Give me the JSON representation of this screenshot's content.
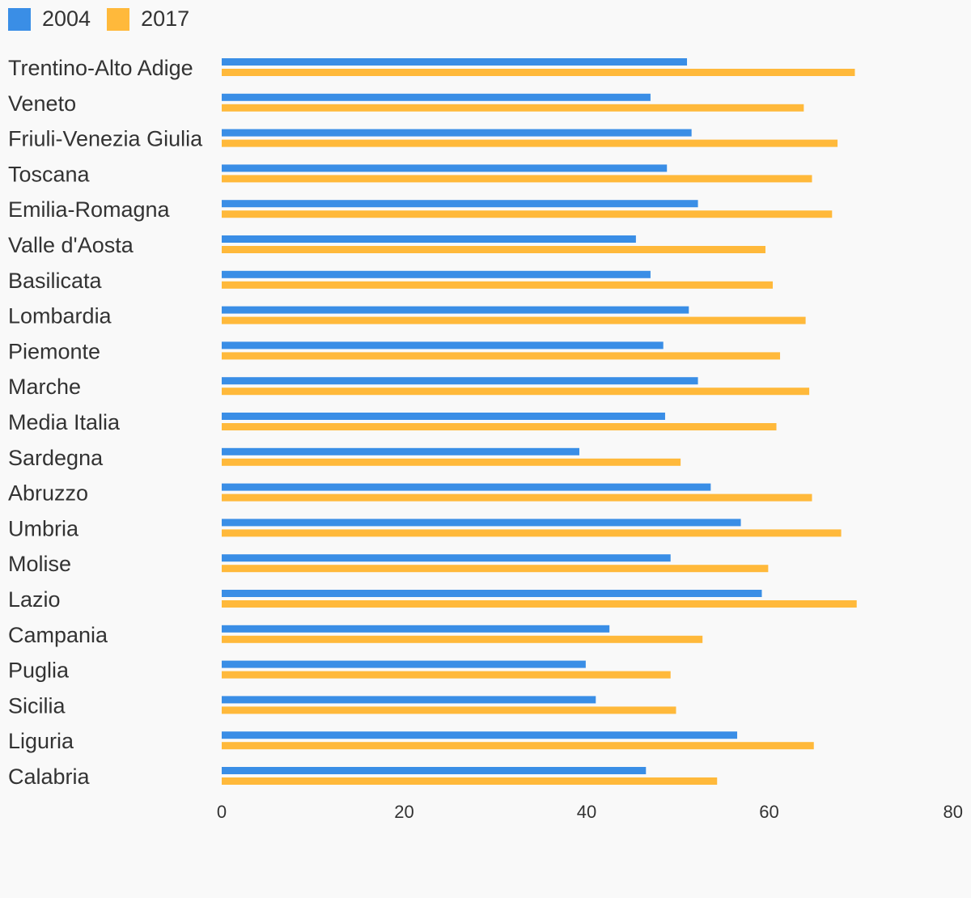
{
  "chart_data": {
    "type": "bar",
    "orientation": "horizontal",
    "categories": [
      "Trentino-Alto Adige",
      "Veneto",
      "Friuli-Venezia Giulia",
      "Toscana",
      "Emilia-Romagna",
      "Valle d'Aosta",
      "Basilicata",
      "Lombardia",
      "Piemonte",
      "Marche",
      "Media Italia",
      "Sardegna",
      "Abruzzo",
      "Umbria",
      "Molise",
      "Lazio",
      "Campania",
      "Puglia",
      "Sicilia",
      "Liguria",
      "Calabria"
    ],
    "series": [
      {
        "name": "2004",
        "color": "#3a8ee6",
        "values": [
          51.0,
          47.0,
          51.5,
          48.8,
          52.2,
          45.4,
          47.0,
          51.2,
          48.4,
          52.2,
          48.6,
          39.2,
          53.6,
          56.9,
          49.2,
          59.2,
          42.5,
          39.9,
          41.0,
          56.5,
          46.5
        ]
      },
      {
        "name": "2017",
        "color": "#ffb93b",
        "values": [
          69.4,
          63.8,
          67.5,
          64.7,
          66.9,
          59.6,
          60.4,
          64.0,
          61.2,
          64.4,
          60.8,
          50.3,
          64.7,
          67.9,
          59.9,
          69.6,
          52.7,
          49.2,
          49.8,
          64.9,
          54.3
        ]
      }
    ],
    "xlim": [
      0,
      80
    ],
    "xticks": [
      0,
      20,
      40,
      60,
      80
    ],
    "legend_position": "top-left",
    "grid": false
  }
}
